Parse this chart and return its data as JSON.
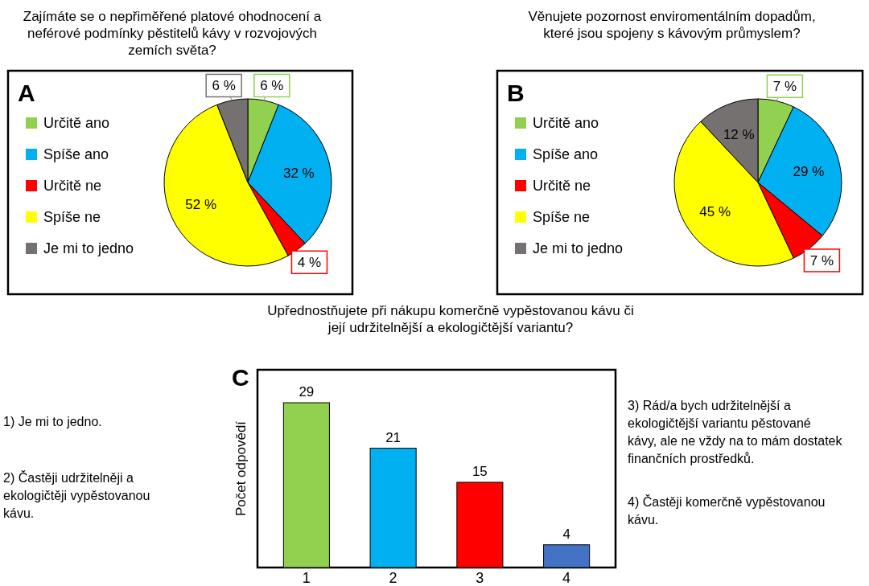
{
  "chart_data": [
    {
      "type": "pie",
      "title": "Zajímáte se o nepřiměřené platové ohodnocení a neférové podmínky pěstitelů kávy v rozvojových zemích světa?",
      "annotations": [
        "A"
      ],
      "categories": [
        "Určitě ano",
        "Spíše ano",
        "Určitě ne",
        "Spíše ne",
        "Je mi to jedno"
      ],
      "values": [
        6,
        32,
        4,
        52,
        6
      ],
      "value_labels": [
        "6 %",
        "32 %",
        "4 %",
        "52 %",
        "6 %"
      ],
      "colors": [
        "#92d050",
        "#00b0f0",
        "#ff0000",
        "#ffff00",
        "#767171"
      ],
      "legend": "left"
    },
    {
      "type": "pie",
      "title": "Věnujete pozornost enviromentálním dopadům, které jsou spojeny s kávovým průmyslem?",
      "annotations": [
        "B"
      ],
      "categories": [
        "Určitě ano",
        "Spíše ano",
        "Určitě ne",
        "Spíše ne",
        "Je mi to jedno"
      ],
      "values": [
        7,
        29,
        7,
        45,
        12
      ],
      "value_labels": [
        "7 %",
        "29 %",
        "7 %",
        "45 %",
        "12 %"
      ],
      "colors": [
        "#92d050",
        "#00b0f0",
        "#ff0000",
        "#ffff00",
        "#767171"
      ],
      "legend": "left"
    },
    {
      "type": "bar",
      "title": "Upřednostňujete při nákupu komerčně vypěstovanou kávu či její udržitelnější a ekologičtější variantu?",
      "ylabel": "Počet odpovědí",
      "annotations": [
        "C",
        "1) Je mi to jedno.",
        "2) Častěji udržitelněji a ekologičtěji vypěstovanou kávu.",
        "3) Rád/a bych udržitelnější a ekologičtější variantu pěstované kávy, ale ne vždy na to mám dostatek finančních prostředků.",
        "4) Častěji komerčně vypěstovanou kávu."
      ],
      "categories": [
        "1",
        "2",
        "3",
        "4"
      ],
      "values": [
        29,
        21,
        15,
        4
      ],
      "colors": [
        "#92d050",
        "#00b0f0",
        "#ff0000",
        "#4472c4"
      ],
      "data_labels": true
    }
  ]
}
